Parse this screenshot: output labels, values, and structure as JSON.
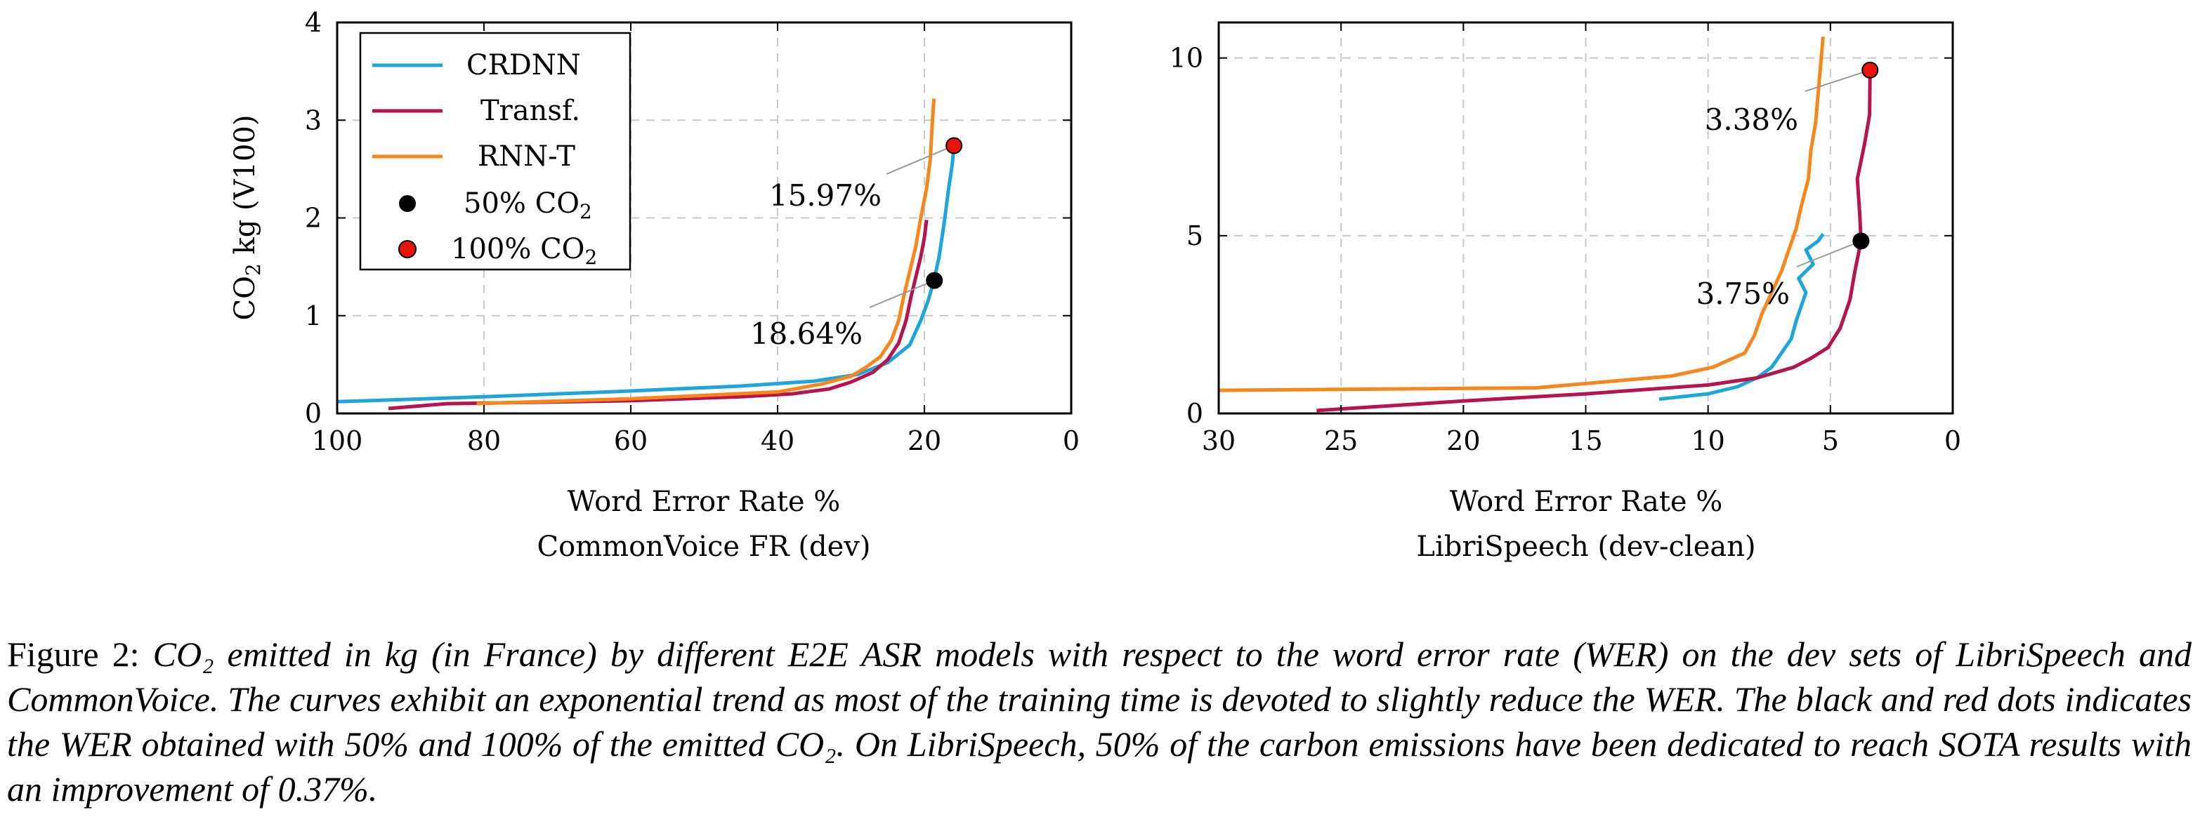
{
  "colors": {
    "CRDNN": "#1ea6dc",
    "Transf.": "#b7134e",
    "RNN-T": "#f7871d",
    "dot50": "#000000",
    "dot100": "#e8140a"
  },
  "chart_data": [
    {
      "type": "line",
      "title": "",
      "xlabel": "Word Error Rate %",
      "xsublabel": "CommonVoice FR (dev)",
      "ylabel": "CO2 kg (V100)",
      "xlim": [
        100,
        0
      ],
      "ylim": [
        0,
        4
      ],
      "xticks": [
        "100",
        "80",
        "60",
        "40",
        "20",
        "0"
      ],
      "yticks": [
        "0",
        "1",
        "2",
        "3",
        "4"
      ],
      "grid": true,
      "legend": "top-left",
      "series": [
        {
          "name": "CRDNN",
          "points": [
            [
              100,
              0.12
            ],
            [
              80,
              0.17
            ],
            [
              60,
              0.23
            ],
            [
              45,
              0.28
            ],
            [
              35,
              0.33
            ],
            [
              29,
              0.4
            ],
            [
              25,
              0.52
            ],
            [
              22,
              0.7
            ],
            [
              20.5,
              0.95
            ],
            [
              19.5,
              1.15
            ],
            [
              18.7,
              1.36
            ],
            [
              18,
              1.6
            ],
            [
              17.3,
              1.95
            ],
            [
              16.7,
              2.3
            ],
            [
              16.2,
              2.55
            ],
            [
              15.97,
              2.74
            ]
          ]
        },
        {
          "name": "Transf.",
          "points": [
            [
              93,
              0.05
            ],
            [
              85,
              0.1
            ],
            [
              60,
              0.13
            ],
            [
              45,
              0.17
            ],
            [
              38,
              0.2
            ],
            [
              33,
              0.25
            ],
            [
              30,
              0.32
            ],
            [
              27,
              0.42
            ],
            [
              25,
              0.55
            ],
            [
              23.5,
              0.72
            ],
            [
              22.5,
              0.95
            ],
            [
              21.8,
              1.2
            ],
            [
              21,
              1.45
            ],
            [
              20.5,
              1.6
            ],
            [
              20,
              1.8
            ],
            [
              19.7,
              1.98
            ]
          ]
        },
        {
          "name": "RNN-T",
          "points": [
            [
              81,
              0.1
            ],
            [
              60,
              0.15
            ],
            [
              40,
              0.22
            ],
            [
              34,
              0.3
            ],
            [
              30,
              0.38
            ],
            [
              28,
              0.47
            ],
            [
              26,
              0.58
            ],
            [
              24.5,
              0.75
            ],
            [
              23.5,
              0.95
            ],
            [
              22.8,
              1.2
            ],
            [
              22,
              1.45
            ],
            [
              21.2,
              1.7
            ],
            [
              20.5,
              2.0
            ],
            [
              19.7,
              2.3
            ],
            [
              19.2,
              2.6
            ],
            [
              18.9,
              3.0
            ],
            [
              18.7,
              3.22
            ]
          ]
        }
      ],
      "markers": [
        {
          "label": "50% CO2",
          "x": 18.64,
          "y": 1.36,
          "annotation": "18.64%"
        },
        {
          "label": "100% CO2",
          "x": 15.97,
          "y": 2.74,
          "annotation": "15.97%"
        }
      ]
    },
    {
      "type": "line",
      "title": "",
      "xlabel": "Word Error Rate %",
      "xsublabel": "LibriSpeech (dev-clean)",
      "ylabel": "",
      "xlim": [
        30,
        0
      ],
      "ylim": [
        0,
        11
      ],
      "xticks": [
        "30",
        "25",
        "20",
        "15",
        "10",
        "5",
        "0"
      ],
      "yticks": [
        "0",
        "5",
        "10"
      ],
      "grid": true,
      "legend": "none",
      "series": [
        {
          "name": "CRDNN",
          "points": [
            [
              12,
              0.4
            ],
            [
              10,
              0.55
            ],
            [
              8.8,
              0.75
            ],
            [
              8,
              1.0
            ],
            [
              7.4,
              1.3
            ],
            [
              7,
              1.7
            ],
            [
              6.6,
              2.1
            ],
            [
              6.4,
              2.6
            ],
            [
              6.2,
              3.0
            ],
            [
              6.0,
              3.4
            ],
            [
              6.3,
              3.8
            ],
            [
              5.7,
              4.2
            ],
            [
              6.0,
              4.6
            ],
            [
              5.5,
              4.85
            ],
            [
              5.3,
              5.05
            ]
          ]
        },
        {
          "name": "Transf.",
          "points": [
            [
              26,
              0.08
            ],
            [
              20,
              0.35
            ],
            [
              15,
              0.55
            ],
            [
              10,
              0.8
            ],
            [
              8,
              1.0
            ],
            [
              6.5,
              1.3
            ],
            [
              5.8,
              1.55
            ],
            [
              5.1,
              1.85
            ],
            [
              4.6,
              2.4
            ],
            [
              4.2,
              3.2
            ],
            [
              4.0,
              4.0
            ],
            [
              3.75,
              4.85
            ],
            [
              3.8,
              5.6
            ],
            [
              3.9,
              6.6
            ],
            [
              3.6,
              7.6
            ],
            [
              3.4,
              8.4
            ],
            [
              3.38,
              9.6
            ]
          ]
        },
        {
          "name": "RNN-T",
          "points": [
            [
              30,
              0.65
            ],
            [
              17,
              0.72
            ],
            [
              14,
              0.9
            ],
            [
              11.5,
              1.05
            ],
            [
              9.8,
              1.3
            ],
            [
              8.5,
              1.7
            ],
            [
              8.1,
              2.2
            ],
            [
              7.8,
              2.8
            ],
            [
              7.4,
              3.4
            ],
            [
              7.0,
              4.0
            ],
            [
              6.7,
              4.6
            ],
            [
              6.4,
              5.2
            ],
            [
              6.2,
              5.8
            ],
            [
              5.9,
              6.6
            ],
            [
              5.8,
              7.4
            ],
            [
              5.6,
              8.2
            ],
            [
              5.5,
              9.0
            ],
            [
              5.4,
              9.8
            ],
            [
              5.3,
              10.6
            ]
          ]
        }
      ],
      "markers": [
        {
          "label": "50% CO2",
          "x": 3.75,
          "y": 4.85,
          "annotation": "3.75%"
        },
        {
          "label": "100% CO2",
          "x": 3.38,
          "y": 9.66,
          "annotation": "3.38%"
        }
      ]
    }
  ],
  "caption": {
    "label": "Figure 2:",
    "text": "CO₂ emitted in kg (in France) by different E2E ASR models with respect to the word error rate (WER) on the dev sets of LibriSpeech and CommonVoice. The curves exhibit an exponential trend as most of the training time is devoted to slightly reduce the WER. The black and red dots indicates the WER obtained with 50% and 100% of the emitted CO₂. On LibriSpeech, 50% of the carbon emissions have been dedicated to reach SOTA results with an improvement of 0.37%."
  }
}
